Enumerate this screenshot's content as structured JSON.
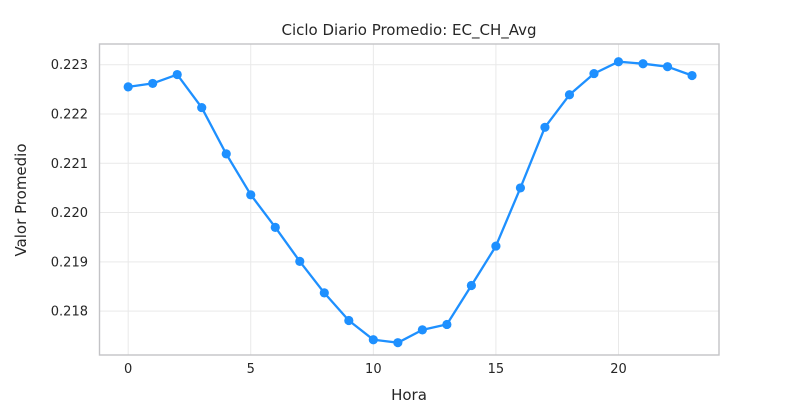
{
  "chart_data": {
    "type": "line",
    "title": "Ciclo Diario Promedio: EC_CH_Avg",
    "xlabel": "Hora",
    "ylabel": "Valor Promedio",
    "series_name": "EC_CH_Avg",
    "x": [
      0,
      1,
      2,
      3,
      4,
      5,
      6,
      7,
      8,
      9,
      10,
      11,
      12,
      13,
      14,
      15,
      16,
      17,
      18,
      19,
      20,
      21,
      22,
      23
    ],
    "values": [
      0.22255,
      0.22262,
      0.2228,
      0.22213,
      0.22119,
      0.22036,
      0.2197,
      0.21901,
      0.21837,
      0.21781,
      0.21742,
      0.21736,
      0.21762,
      0.21773,
      0.21852,
      0.21932,
      0.2205,
      0.22173,
      0.22239,
      0.22282,
      0.22306,
      0.22302,
      0.22296,
      0.22278
    ],
    "xticks": [
      0,
      5,
      10,
      15,
      20
    ],
    "xtick_labels": [
      "0",
      "5",
      "10",
      "15",
      "20"
    ],
    "yticks": [
      0.218,
      0.219,
      0.22,
      0.221,
      0.222,
      0.223
    ],
    "ytick_labels": [
      "0.218",
      "0.219",
      "0.220",
      "0.221",
      "0.222",
      "0.223"
    ],
    "xlim": [
      -1.17,
      24.1
    ],
    "ylim": [
      0.21711,
      0.22342
    ],
    "grid": true,
    "legend_position": "none",
    "marker": "circle",
    "colors": {
      "line": "#1e90ff",
      "marker": "#1e90ff",
      "grid": "#e9e9e9",
      "spine": "#c3c3c6",
      "text": "#262626",
      "background": "#ffffff"
    }
  }
}
